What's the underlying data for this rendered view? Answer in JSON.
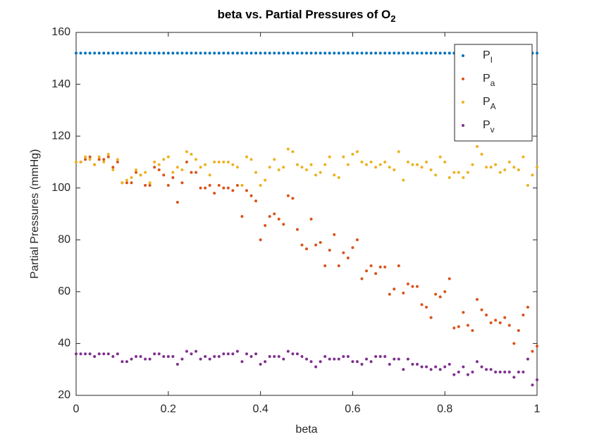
{
  "chart_data": {
    "type": "scatter",
    "title": "beta vs. Partial Pressures of O",
    "title_subscript": "2",
    "x_label": "beta",
    "y_label": "Partial Pressures (mmHg)",
    "xlim": [
      0,
      1
    ],
    "ylim": [
      20,
      160
    ],
    "xticks": [
      0,
      0.2,
      0.4,
      0.6,
      0.8,
      1
    ],
    "yticks": [
      20,
      40,
      60,
      80,
      100,
      120,
      140,
      160
    ],
    "grid": false,
    "legend_position": "upper-right",
    "x": [
      0,
      0.01,
      0.02,
      0.03,
      0.04,
      0.05,
      0.06,
      0.07,
      0.08,
      0.09,
      0.1,
      0.11,
      0.12,
      0.13,
      0.14,
      0.15,
      0.16,
      0.17,
      0.18,
      0.19,
      0.2,
      0.21,
      0.22,
      0.23,
      0.24,
      0.25,
      0.26,
      0.27,
      0.28,
      0.29,
      0.3,
      0.31,
      0.32,
      0.33,
      0.34,
      0.35,
      0.36,
      0.37,
      0.38,
      0.39,
      0.4,
      0.41,
      0.42,
      0.43,
      0.44,
      0.45,
      0.46,
      0.47,
      0.48,
      0.49,
      0.5,
      0.51,
      0.52,
      0.53,
      0.54,
      0.55,
      0.56,
      0.57,
      0.58,
      0.59,
      0.6,
      0.61,
      0.62,
      0.63,
      0.64,
      0.65,
      0.66,
      0.67,
      0.68,
      0.69,
      0.7,
      0.71,
      0.72,
      0.73,
      0.74,
      0.75,
      0.76,
      0.77,
      0.78,
      0.79,
      0.8,
      0.81,
      0.82,
      0.83,
      0.84,
      0.85,
      0.86,
      0.87,
      0.88,
      0.89,
      0.9,
      0.91,
      0.92,
      0.93,
      0.94,
      0.95,
      0.96,
      0.97,
      0.98,
      0.99,
      1
    ],
    "series": [
      {
        "name": "P",
        "subscript": "I",
        "color": "#0072bd",
        "values": [
          152,
          152,
          152,
          152,
          152,
          152,
          152,
          152,
          152,
          152,
          152,
          152,
          152,
          152,
          152,
          152,
          152,
          152,
          152,
          152,
          152,
          152,
          152,
          152,
          152,
          152,
          152,
          152,
          152,
          152,
          152,
          152,
          152,
          152,
          152,
          152,
          152,
          152,
          152,
          152,
          152,
          152,
          152,
          152,
          152,
          152,
          152,
          152,
          152,
          152,
          152,
          152,
          152,
          152,
          152,
          152,
          152,
          152,
          152,
          152,
          152,
          152,
          152,
          152,
          152,
          152,
          152,
          152,
          152,
          152,
          152,
          152,
          152,
          152,
          152,
          152,
          152,
          152,
          152,
          152,
          152,
          152,
          152,
          152,
          152,
          152,
          152,
          152,
          152,
          152,
          152,
          152,
          152,
          152,
          152,
          152,
          152,
          152,
          152,
          152,
          152
        ]
      },
      {
        "name": "P",
        "subscript": "a",
        "color": "#d95319",
        "values": [
          110,
          110,
          111,
          112,
          109,
          111,
          111,
          112,
          108,
          110,
          102,
          102,
          102,
          106,
          105,
          101,
          101,
          108,
          107,
          105,
          101,
          104,
          94.5,
          102,
          110,
          106,
          106,
          100,
          100,
          101,
          98,
          101,
          100,
          100,
          99,
          101,
          89,
          99,
          97,
          95,
          80,
          85.5,
          89,
          90,
          88,
          86,
          97,
          96,
          84,
          78,
          76.5,
          88,
          78,
          79,
          70,
          76,
          82,
          70,
          75,
          73,
          77,
          80,
          65,
          68,
          70,
          67,
          69.5,
          69.5,
          59,
          61,
          70,
          59.5,
          63,
          62,
          62,
          55,
          54,
          50,
          59,
          58,
          60,
          65,
          46,
          46.5,
          52,
          47,
          45,
          57,
          53,
          51,
          48,
          49,
          48,
          50,
          47,
          40,
          45,
          51,
          54,
          37,
          39
        ]
      },
      {
        "name": "P",
        "subscript": "A",
        "color": "#edb120",
        "values": [
          110,
          110,
          112,
          111,
          109,
          112,
          110,
          113,
          107,
          111,
          102,
          103,
          104,
          107,
          105,
          106,
          102,
          110,
          109,
          111,
          112,
          106,
          108,
          107,
          114,
          113,
          111,
          108,
          109,
          105,
          110,
          110,
          110,
          110,
          109,
          108,
          101,
          112,
          111,
          106,
          101,
          103,
          108,
          111,
          107,
          108,
          115,
          114,
          109,
          108,
          107,
          109,
          105,
          106,
          109,
          112,
          105,
          104,
          112,
          109,
          113,
          114,
          110,
          109,
          110,
          108,
          109,
          110,
          108,
          107,
          114,
          103,
          110,
          109,
          109,
          108,
          110,
          107,
          105,
          112,
          110,
          104,
          106,
          106,
          104,
          106,
          109,
          116,
          113,
          108,
          108,
          109,
          106,
          107,
          110,
          108,
          107,
          112,
          101,
          105,
          108
        ]
      },
      {
        "name": "P",
        "subscript": "v",
        "color": "#7e2f8e",
        "values": [
          36,
          36,
          36,
          36,
          35,
          36,
          36,
          36,
          35,
          36,
          33,
          33,
          34,
          35,
          35,
          34,
          34,
          36,
          36,
          35,
          35,
          35,
          32,
          34,
          37,
          36,
          37,
          34,
          35,
          34,
          35,
          35,
          36,
          36,
          36,
          37,
          33,
          36,
          35,
          36,
          32,
          33,
          35,
          35,
          35,
          34,
          37,
          36,
          36,
          35,
          34,
          33,
          31,
          33,
          35,
          34,
          34,
          34,
          35,
          35,
          33,
          33,
          32,
          34,
          33,
          35,
          35,
          35,
          32,
          34,
          34,
          30,
          34,
          32,
          32,
          31,
          31,
          30,
          31,
          30,
          31,
          32,
          28,
          29,
          31,
          28,
          29,
          33,
          31,
          30,
          30,
          29,
          29,
          29,
          29,
          27,
          29,
          29,
          34,
          24,
          26
        ]
      }
    ]
  }
}
